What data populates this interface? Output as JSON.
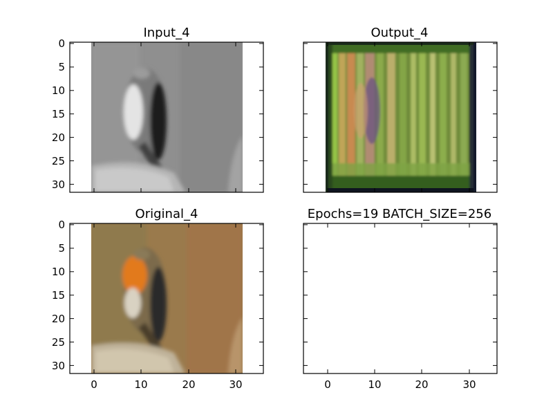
{
  "chart_data": [
    {
      "type": "image",
      "title": "Input_4",
      "image_rows": 32,
      "image_cols": 32,
      "image_colormap": "grayscale",
      "image_subject": "bird",
      "xlim": [
        -5,
        36
      ],
      "ylim": [
        31.5,
        -0.5
      ],
      "xticks": [],
      "yticks": [
        0,
        5,
        10,
        15,
        20,
        25,
        30
      ],
      "ytick_labels": [
        "0",
        "5",
        "10",
        "15",
        "20",
        "25",
        "30"
      ]
    },
    {
      "type": "image",
      "title": "Output_4",
      "image_rows": 32,
      "image_cols": 32,
      "image_colormap": "rgb",
      "image_subject": "reconstruction",
      "xlim": [
        -5,
        36
      ],
      "ylim": [
        31.5,
        -0.5
      ],
      "xticks": [],
      "yticks": [
        0,
        5,
        10,
        15,
        20,
        25,
        30
      ],
      "ytick_labels": [
        "",
        "",
        "",
        "",
        "",
        "",
        ""
      ]
    },
    {
      "type": "image",
      "title": "Original_4",
      "image_rows": 32,
      "image_cols": 32,
      "image_colormap": "rgb",
      "image_subject": "bird",
      "xlim": [
        -5,
        36
      ],
      "ylim": [
        31.5,
        -0.5
      ],
      "xticks": [
        0,
        10,
        20,
        30
      ],
      "xtick_labels": [
        "0",
        "10",
        "20",
        "30"
      ],
      "yticks": [
        0,
        5,
        10,
        15,
        20,
        25,
        30
      ],
      "ytick_labels": [
        "0",
        "5",
        "10",
        "15",
        "20",
        "25",
        "30"
      ]
    },
    {
      "type": "image",
      "title": "Epochs=19 BATCH_SIZE=256",
      "image_rows": 0,
      "image_cols": 0,
      "xlim": [
        -5,
        36
      ],
      "ylim": [
        31.5,
        -0.5
      ],
      "xticks": [
        0,
        10,
        20,
        30
      ],
      "xtick_labels": [
        "0",
        "10",
        "20",
        "30"
      ],
      "yticks": [
        0,
        5,
        10,
        15,
        20,
        25,
        30
      ],
      "ytick_labels": [
        "",
        "",
        "",
        "",
        "",
        "",
        ""
      ]
    }
  ]
}
